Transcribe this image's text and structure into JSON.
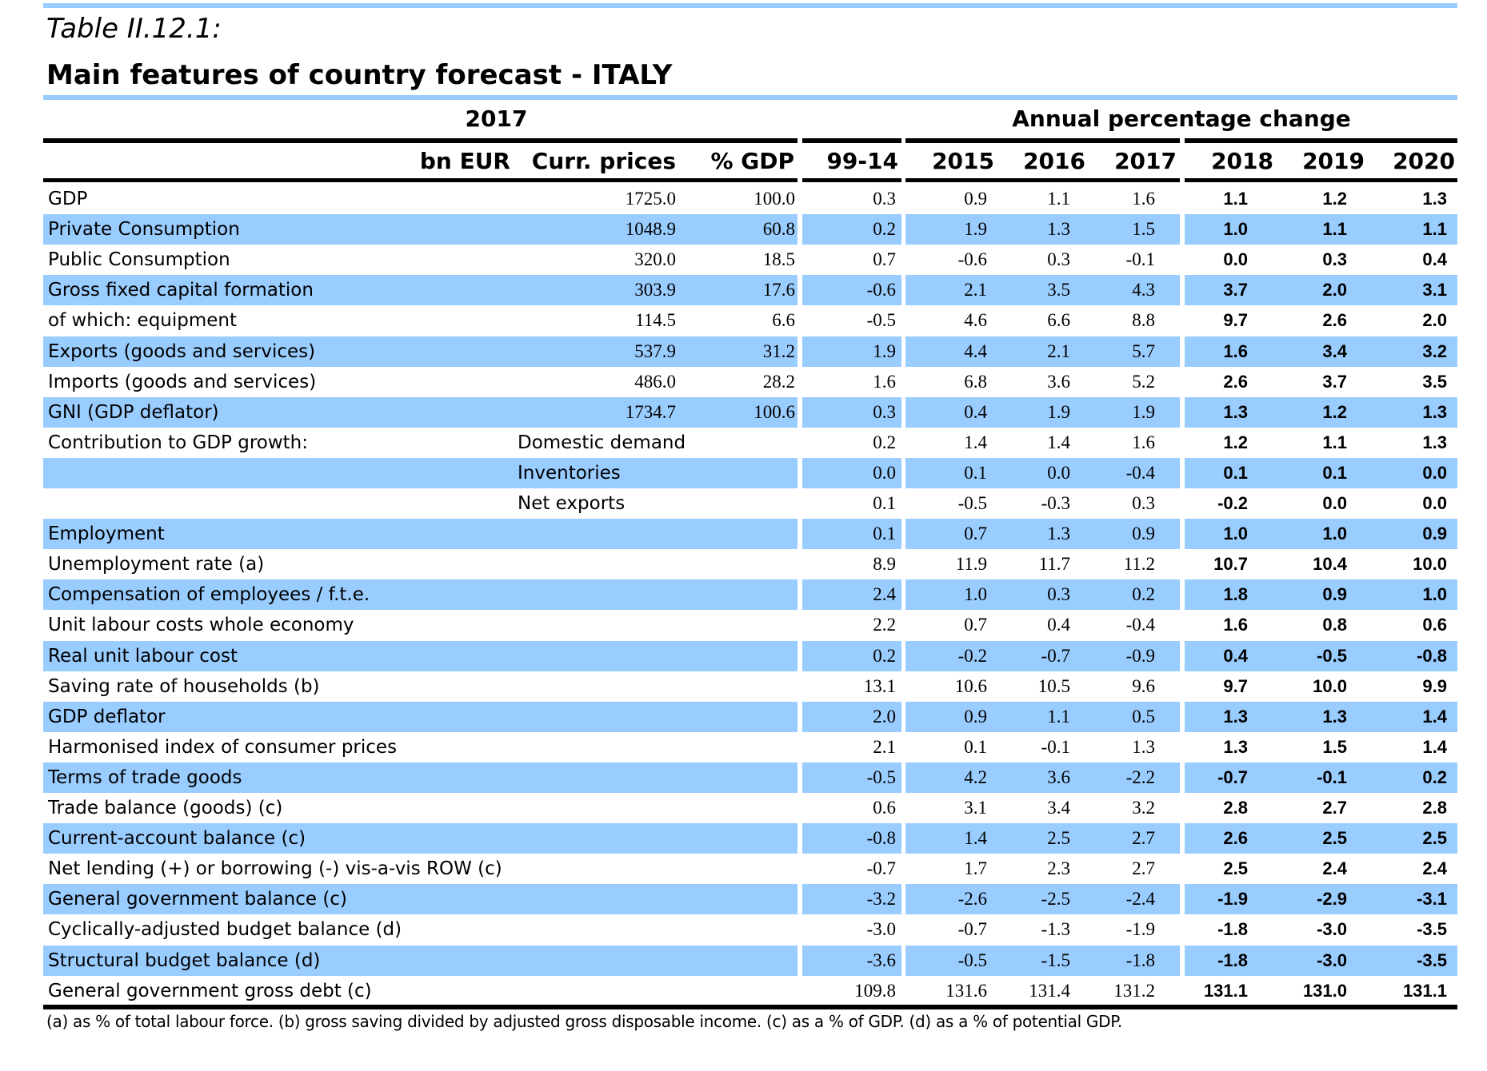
{
  "header": {
    "table_label": "Table II.12.1:",
    "title": "Main features of country forecast - ITALY",
    "group_level": "2017",
    "group_change": "Annual percentage change"
  },
  "columns": {
    "level_unit": "bn EUR",
    "curr_prices": "Curr. prices",
    "pct_gdp": "% GDP",
    "years": [
      "99-14",
      "2015",
      "2016",
      "2017",
      "2018",
      "2019",
      "2020"
    ]
  },
  "rows": [
    {
      "label": "GDP",
      "sub": "",
      "curr": "1725.0",
      "pct": "100.0",
      "vals": [
        "0.3",
        "0.9",
        "1.1",
        "1.6",
        "1.1",
        "1.2",
        "1.3"
      ]
    },
    {
      "label": "Private Consumption",
      "sub": "",
      "curr": "1048.9",
      "pct": "60.8",
      "vals": [
        "0.2",
        "1.9",
        "1.3",
        "1.5",
        "1.0",
        "1.1",
        "1.1"
      ]
    },
    {
      "label": "Public Consumption",
      "sub": "",
      "curr": "320.0",
      "pct": "18.5",
      "vals": [
        "0.7",
        "-0.6",
        "0.3",
        "-0.1",
        "0.0",
        "0.3",
        "0.4"
      ]
    },
    {
      "label": "Gross fixed capital formation",
      "sub": "",
      "curr": "303.9",
      "pct": "17.6",
      "vals": [
        "-0.6",
        "2.1",
        "3.5",
        "4.3",
        "3.7",
        "2.0",
        "3.1"
      ]
    },
    {
      "label": "of which: equipment",
      "sub": "",
      "curr": "114.5",
      "pct": "6.6",
      "vals": [
        "-0.5",
        "4.6",
        "6.6",
        "8.8",
        "9.7",
        "2.6",
        "2.0"
      ]
    },
    {
      "label": "Exports (goods and services)",
      "sub": "",
      "curr": "537.9",
      "pct": "31.2",
      "vals": [
        "1.9",
        "4.4",
        "2.1",
        "5.7",
        "1.6",
        "3.4",
        "3.2"
      ]
    },
    {
      "label": "Imports (goods and services)",
      "sub": "",
      "curr": "486.0",
      "pct": "28.2",
      "vals": [
        "1.6",
        "6.8",
        "3.6",
        "5.2",
        "2.6",
        "3.7",
        "3.5"
      ]
    },
    {
      "label": "GNI (GDP deflator)",
      "sub": "",
      "curr": "1734.7",
      "pct": "100.6",
      "vals": [
        "0.3",
        "0.4",
        "1.9",
        "1.9",
        "1.3",
        "1.2",
        "1.3"
      ]
    },
    {
      "label": "Contribution to GDP growth:",
      "sub": "Domestic demand",
      "curr": "",
      "pct": "",
      "vals": [
        "0.2",
        "1.4",
        "1.4",
        "1.6",
        "1.2",
        "1.1",
        "1.3"
      ]
    },
    {
      "label": "",
      "sub": "Inventories",
      "curr": "",
      "pct": "",
      "vals": [
        "0.0",
        "0.1",
        "0.0",
        "-0.4",
        "0.1",
        "0.1",
        "0.0"
      ]
    },
    {
      "label": "",
      "sub": "Net exports",
      "curr": "",
      "pct": "",
      "vals": [
        "0.1",
        "-0.5",
        "-0.3",
        "0.3",
        "-0.2",
        "0.0",
        "0.0"
      ]
    },
    {
      "label": "Employment",
      "sub": "",
      "curr": "",
      "pct": "",
      "vals": [
        "0.1",
        "0.7",
        "1.3",
        "0.9",
        "1.0",
        "1.0",
        "0.9"
      ]
    },
    {
      "label": "Unemployment rate (a)",
      "sub": "",
      "curr": "",
      "pct": "",
      "vals": [
        "8.9",
        "11.9",
        "11.7",
        "11.2",
        "10.7",
        "10.4",
        "10.0"
      ]
    },
    {
      "label": "Compensation of employees / f.t.e.",
      "sub": "",
      "curr": "",
      "pct": "",
      "vals": [
        "2.4",
        "1.0",
        "0.3",
        "0.2",
        "1.8",
        "0.9",
        "1.0"
      ]
    },
    {
      "label": "Unit labour costs whole economy",
      "sub": "",
      "curr": "",
      "pct": "",
      "vals": [
        "2.2",
        "0.7",
        "0.4",
        "-0.4",
        "1.6",
        "0.8",
        "0.6"
      ]
    },
    {
      "label": "Real unit labour cost",
      "sub": "",
      "curr": "",
      "pct": "",
      "vals": [
        "0.2",
        "-0.2",
        "-0.7",
        "-0.9",
        "0.4",
        "-0.5",
        "-0.8"
      ]
    },
    {
      "label": "Saving rate of households (b)",
      "sub": "",
      "curr": "",
      "pct": "",
      "vals": [
        "13.1",
        "10.6",
        "10.5",
        "9.6",
        "9.7",
        "10.0",
        "9.9"
      ]
    },
    {
      "label": "GDP deflator",
      "sub": "",
      "curr": "",
      "pct": "",
      "vals": [
        "2.0",
        "0.9",
        "1.1",
        "0.5",
        "1.3",
        "1.3",
        "1.4"
      ]
    },
    {
      "label": "Harmonised index of consumer prices",
      "sub": "",
      "curr": "",
      "pct": "",
      "vals": [
        "2.1",
        "0.1",
        "-0.1",
        "1.3",
        "1.3",
        "1.5",
        "1.4"
      ]
    },
    {
      "label": "Terms of trade goods",
      "sub": "",
      "curr": "",
      "pct": "",
      "vals": [
        "-0.5",
        "4.2",
        "3.6",
        "-2.2",
        "-0.7",
        "-0.1",
        "0.2"
      ]
    },
    {
      "label": "Trade balance (goods) (c)",
      "sub": "",
      "curr": "",
      "pct": "",
      "vals": [
        "0.6",
        "3.1",
        "3.4",
        "3.2",
        "2.8",
        "2.7",
        "2.8"
      ]
    },
    {
      "label": "Current-account balance (c)",
      "sub": "",
      "curr": "",
      "pct": "",
      "vals": [
        "-0.8",
        "1.4",
        "2.5",
        "2.7",
        "2.6",
        "2.5",
        "2.5"
      ]
    },
    {
      "label": "Net lending (+) or borrowing (-) vis-a-vis ROW (c)",
      "sub": "",
      "curr": "",
      "pct": "",
      "vals": [
        "-0.7",
        "1.7",
        "2.3",
        "2.7",
        "2.5",
        "2.4",
        "2.4"
      ]
    },
    {
      "label": "General government balance (c)",
      "sub": "",
      "curr": "",
      "pct": "",
      "vals": [
        "-3.2",
        "-2.6",
        "-2.5",
        "-2.4",
        "-1.9",
        "-2.9",
        "-3.1"
      ]
    },
    {
      "label": "Cyclically-adjusted budget balance (d)",
      "sub": "",
      "curr": "",
      "pct": "",
      "vals": [
        "-3.0",
        "-0.7",
        "-1.3",
        "-1.9",
        "-1.8",
        "-3.0",
        "-3.5"
      ]
    },
    {
      "label": "Structural budget balance (d)",
      "sub": "",
      "curr": "",
      "pct": "",
      "vals": [
        "-3.6",
        "-0.5",
        "-1.5",
        "-1.8",
        "-1.8",
        "-3.0",
        "-3.5"
      ]
    },
    {
      "label": "General government gross debt (c)",
      "sub": "",
      "curr": "",
      "pct": "",
      "vals": [
        "109.8",
        "131.6",
        "131.4",
        "131.2",
        "131.1",
        "131.0",
        "131.1"
      ]
    }
  ],
  "footnote": "(a) as % of total labour force. (b) gross saving divided by adjusted gross disposable income.  (c) as a % of  GDP. (d) as a % of  potential GDP.",
  "colors": {
    "row_highlight": "#99ccff",
    "rule_accent": "#99ccff",
    "rule_dark": "#000000"
  }
}
